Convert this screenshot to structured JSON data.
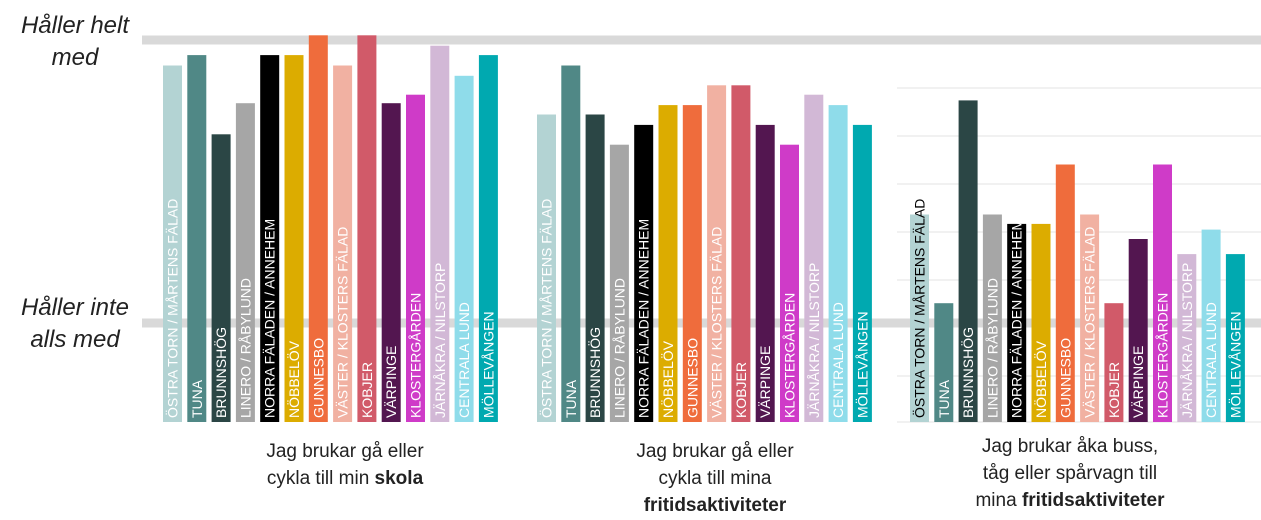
{
  "y_axis": {
    "top_label": "Håller helt\nmed",
    "bottom_label": "Håller inte\nalls med"
  },
  "colors": [
    "#b3d3d3",
    "#508886",
    "#2b4645",
    "#a6a6a6",
    "#000000",
    "#dcac00",
    "#ef6c3c",
    "#f1b1a2",
    "#d15a69",
    "#531650",
    "#cf3bc8",
    "#d2b8d6",
    "#8fdcea",
    "#00a9b0"
  ],
  "chart_data": [
    {
      "type": "bar",
      "categories": [
        "ÖSTRA TORN / MÅRTENS FÄLAD",
        "TUNA",
        "BRUNNSHÖG",
        "LINERO / RÅBYLUND",
        "NORRA FÄLADEN / ANNEHEM",
        "NÖBBELÖV",
        "GUNNESBO",
        "VÄSTER / KLOSTERS FÄLAD",
        "KOBJER",
        "VÄRPINGE",
        "KLOSTERGÅRDEN",
        "JÄRNÅKRA / NILSTORP",
        "CENTRALA LUND",
        "MÖLLEVÅNGEN"
      ],
      "values": [
        3.73,
        3.84,
        3.0,
        3.33,
        3.84,
        3.84,
        4.05,
        3.73,
        4.05,
        3.33,
        3.42,
        3.94,
        3.62,
        3.84
      ],
      "ylim": [
        1,
        4
      ],
      "caption": {
        "pre": "Jag brukar gå eller\ncykla till min ",
        "bold": "skola"
      }
    },
    {
      "type": "bar",
      "categories": [
        "ÖSTRA TORN / MÅRTENS FÄLAD",
        "TUNA",
        "BRUNNSHÖG",
        "LINERO / RÅBYLUND",
        "NORRA FÄLADEN / ANNEHEM",
        "NÖBBELÖV",
        "GUNNESBO",
        "VÄSTER / KLOSTERS FÄLAD",
        "KOBJER",
        "VÄRPINGE",
        "KLOSTERGÅRDEN",
        "JÄRNÅKRA / NILSTORP",
        "CENTRALA LUND",
        "MÖLLEVÅNGEN"
      ],
      "values": [
        3.21,
        3.73,
        3.21,
        2.89,
        3.1,
        3.31,
        3.31,
        3.52,
        3.52,
        3.1,
        2.89,
        3.42,
        3.31,
        3.1
      ],
      "ylim": [
        1,
        4
      ],
      "caption": {
        "pre": "Jag brukar gå eller\ncykla till mina\n",
        "bold": "fritidsaktiviteter"
      }
    },
    {
      "type": "bar",
      "categories": [
        "ÖSTRA TORN / MÅRTENS FÄLAD",
        "TUNA",
        "BRUNNSHÖG",
        "LINERO / RÅBYLUND",
        "NORRA FÄLADEN / ANNEHEM",
        "NÖBBELÖV",
        "GUNNESBO",
        "VÄSTER / KLOSTERS FÄLAD",
        "KOBJER",
        "VÄRPINGE",
        "KLOSTERGÅRDEN",
        "JÄRNÅKRA / NILSTORP",
        "CENTRALA LUND",
        "MÖLLEVÅNGEN"
      ],
      "values": [
        2.15,
        1.21,
        3.36,
        2.15,
        2.05,
        2.05,
        2.68,
        2.15,
        1.21,
        1.89,
        2.68,
        1.73,
        1.99,
        1.73
      ],
      "ylim": [
        1,
        4
      ],
      "caption": {
        "pre": "Jag brukar åka buss,\ntåg eller spårvagn till\nmina ",
        "bold": "fritidsaktiviteter"
      }
    }
  ]
}
